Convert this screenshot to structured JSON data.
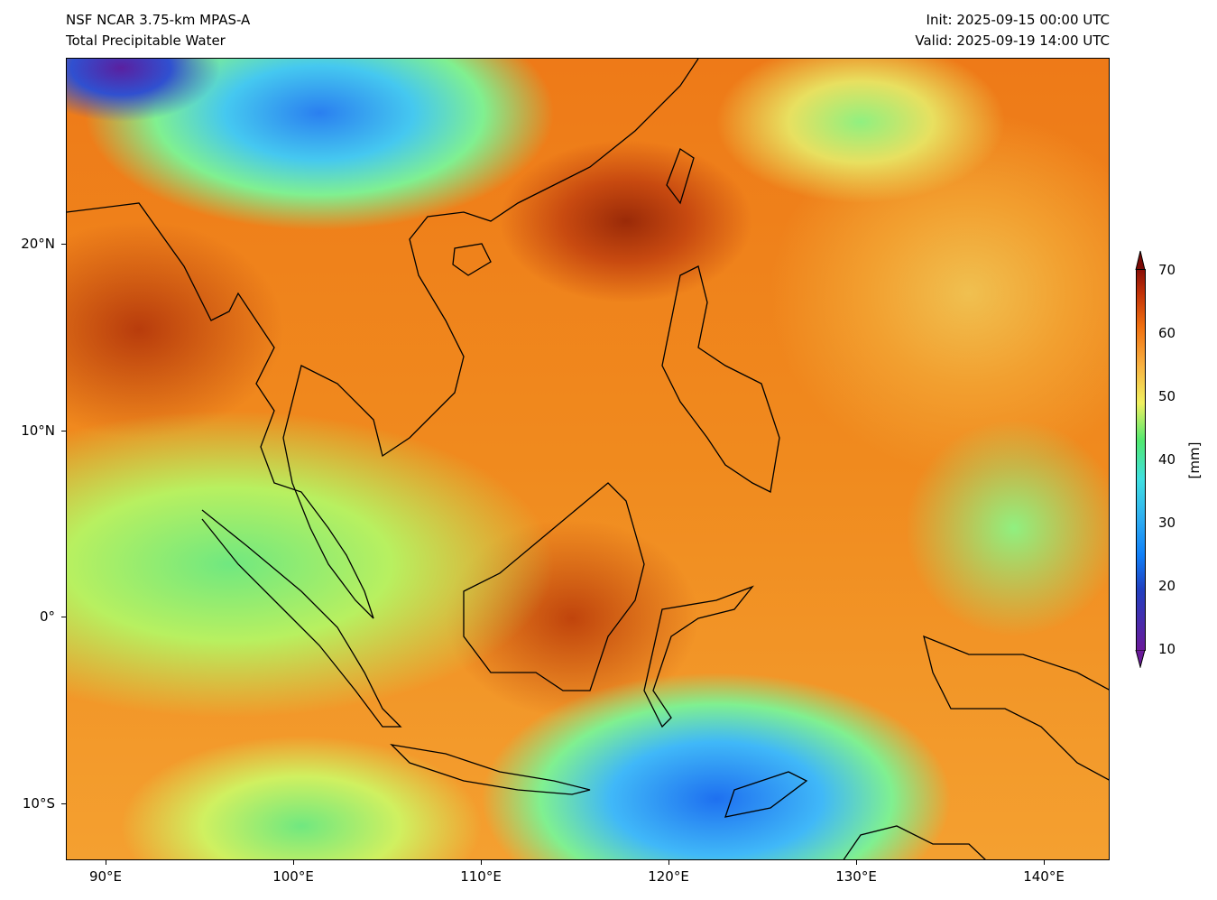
{
  "header": {
    "model": "NSF NCAR 3.75-km MPAS-A",
    "field": "Total Precipitable Water",
    "init": "Init: 2025-09-15 00:00 UTC",
    "valid": "Valid: 2025-09-19 14:00 UTC"
  },
  "axes": {
    "lon_labels": [
      "90°E",
      "100°E",
      "110°E",
      "120°E",
      "130°E",
      "140°E"
    ],
    "lat_labels": [
      "20°N",
      "10°N",
      "0°",
      "10°S"
    ]
  },
  "colorbar": {
    "unit": "[mm]",
    "ticks": [
      "70",
      "60",
      "50",
      "40",
      "30",
      "20",
      "10"
    ],
    "range": [
      10,
      70
    ],
    "colors": [
      "#6a1a9a",
      "#2040c0",
      "#1080f8",
      "#30b0f0",
      "#40e0e0",
      "#50e870",
      "#f0f060",
      "#f8b040",
      "#f07010",
      "#c03008",
      "#8a1008"
    ]
  }
}
